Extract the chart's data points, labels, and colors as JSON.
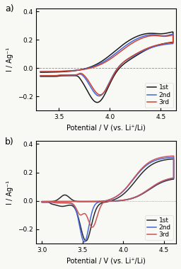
{
  "panel_a_label": "a)",
  "panel_b_label": "b)",
  "xlabel": "Potential / V (vs. Li⁺/Li)",
  "ylabel": "I / Ag⁻¹",
  "legend_labels": [
    "1st",
    "2nd",
    "3rd"
  ],
  "colors_a": [
    "#1a1a1a",
    "#4466dd",
    "#cc4433"
  ],
  "colors_b": [
    "#2a2a2a",
    "#4466dd",
    "#cc5555"
  ],
  "xlim_a": [
    3.28,
    4.65
  ],
  "xlim_b": [
    2.93,
    4.65
  ],
  "ylim_a": [
    -0.3,
    0.42
  ],
  "ylim_b": [
    -0.3,
    0.42
  ],
  "xticks_a": [
    3.5,
    4.0,
    4.5
  ],
  "xticks_b": [
    3.0,
    3.5,
    4.0,
    4.5
  ],
  "yticks": [
    -0.2,
    0.0,
    0.2,
    0.4
  ],
  "background_color": "#f8f8f5"
}
